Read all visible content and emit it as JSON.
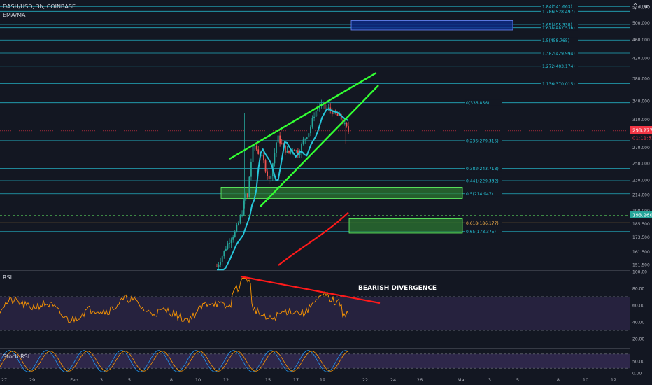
{
  "header": {
    "symbol": "DASH/USD, 3h, COINBASE",
    "indicator": "EMA/MA",
    "currency": "USD"
  },
  "panels": {
    "rsi_label": "RSI",
    "stoch_label": "Stoch RSI"
  },
  "annotations": {
    "divergence": "BEARISH DIVERGENCE"
  },
  "price_badges": {
    "last": "293.277",
    "countdown": "01:11:53",
    "level": "193.260"
  },
  "colors": {
    "background": "#131722",
    "fib": "#26c6da",
    "fib_618": "#ffb74d",
    "wedge": "#33ff33",
    "ema_fast": "#26c6da",
    "ma_slow": "#ff1a1a",
    "rsi_line": "#ff9800",
    "stoch_k": "#2196f3",
    "stoch_d": "#ff9800",
    "zone_green": "#2e7d32",
    "zone_blue": "#0d2a8a",
    "divergence_line": "#ff1a1a",
    "level_dash": "#4caf50",
    "last_price": "#f23645"
  },
  "chart_data": [
    {
      "type": "candlestick",
      "title": "DASH/USD, 3h, COINBASE",
      "y_scale": "log",
      "ylim": [
        148,
        600
      ],
      "y_ticks": [
        151.5,
        161.5,
        173.5,
        185.5,
        198,
        214,
        230,
        250,
        270,
        310,
        340,
        380,
        420,
        460,
        500,
        540
      ],
      "y_tick_labels": [
        "151.500",
        "161.500",
        "173.500",
        "185.500",
        "198.000",
        "214.000",
        "230.000",
        "250.000",
        "270.000",
        "310.000",
        "340.000",
        "380.000",
        "420.000",
        "460.000",
        "500.000",
        "540.000"
      ],
      "x_tick_labels": [
        "27",
        "29",
        "Feb",
        "3",
        "5",
        "8",
        "10",
        "12",
        "15",
        "17",
        "19",
        "22",
        "24",
        "26",
        "Mar",
        "3",
        "5",
        "8",
        "10",
        "12"
      ],
      "fib_levels": [
        {
          "label": "0(336.856)",
          "value": 336.856
        },
        {
          "label": "0.236(279.315)",
          "value": 279.315
        },
        {
          "label": "0.382(243.718)",
          "value": 243.718
        },
        {
          "label": "0.441(229.332)",
          "value": 229.332
        },
        {
          "label": "0.5(214.947)",
          "value": 214.947
        },
        {
          "label": "0.618(186.177)",
          "value": 186.177
        },
        {
          "label": "0.65(178.375)",
          "value": 178.375
        },
        {
          "label": "1.136(370.015)",
          "value": 370.015
        },
        {
          "label": "1.272(403.174)",
          "value": 403.174
        },
        {
          "label": "1.382(429.994)",
          "value": 429.994
        },
        {
          "label": "1.5(458.765)",
          "value": 458.765
        },
        {
          "label": "1.618(487.536)",
          "value": 487.536
        },
        {
          "label": "1.65(495.338)",
          "value": 495.338
        },
        {
          "label": "1.786(528.497)",
          "value": 528.497
        },
        {
          "label": "1.84(541.663)",
          "value": 541.663
        }
      ],
      "last_price": 293.277,
      "level_price": 193.26
    },
    {
      "type": "line",
      "title": "RSI",
      "ylim": [
        10,
        100
      ],
      "y_ticks": [
        20,
        40,
        60,
        80,
        100
      ],
      "y_tick_labels": [
        "20.00",
        "40.00",
        "60.00",
        "80.00",
        "100.00"
      ],
      "bands": [
        30,
        70
      ]
    },
    {
      "type": "line",
      "title": "Stoch RSI",
      "ylim": [
        0,
        100
      ],
      "y_ticks": [
        0,
        50
      ],
      "y_tick_labels": [
        "0.00",
        "50.00"
      ],
      "bands": [
        20,
        80
      ]
    }
  ]
}
